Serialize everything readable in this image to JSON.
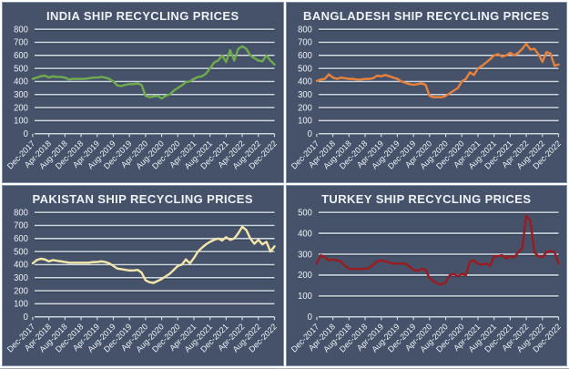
{
  "theme": {
    "page_bg": "#ffffff",
    "panel_bg": "#455269",
    "panel_border": "#8091a8",
    "grid_light": "#ccd4de",
    "grid_shadow": "#354155",
    "text": "#eef2f7"
  },
  "chart_data": [
    {
      "type": "line",
      "title": "INDIA SHIP RECYCLING PRICES",
      "line_color": "#6faa4f",
      "ylim": [
        0,
        800
      ],
      "y_ticks": [
        0,
        100,
        200,
        300,
        400,
        500,
        600,
        700,
        800
      ],
      "x_monthly_start": "Dec-2017",
      "x_monthly_end": "Dec-2022",
      "x_tick_labels": [
        "Dec-2017",
        "Apr-2018",
        "Aug-2018",
        "Dec-2018",
        "Apr-2019",
        "Aug-2019",
        "Dec-2019",
        "Apr-2020",
        "Aug-2020",
        "Dec-2020",
        "Apr-2021",
        "Aug-2021",
        "Dec-2021",
        "Apr-2022",
        "Aug-2022",
        "Dec-2022"
      ],
      "values": [
        420,
        430,
        440,
        445,
        430,
        440,
        435,
        435,
        430,
        415,
        420,
        420,
        420,
        420,
        425,
        430,
        430,
        435,
        430,
        420,
        400,
        370,
        365,
        375,
        380,
        380,
        385,
        375,
        290,
        280,
        285,
        290,
        270,
        290,
        300,
        330,
        350,
        370,
        395,
        400,
        420,
        435,
        440,
        460,
        500,
        545,
        560,
        600,
        550,
        640,
        560,
        650,
        670,
        650,
        600,
        580,
        560,
        555,
        600,
        560,
        530
      ]
    },
    {
      "type": "line",
      "title": "BANGLADESH SHIP RECYCLING PRICES",
      "line_color": "#e8813b",
      "ylim": [
        0,
        800
      ],
      "y_ticks": [
        0,
        100,
        200,
        300,
        400,
        500,
        600,
        700,
        800
      ],
      "x_monthly_start": "Dec-2017",
      "x_monthly_end": "Dec-2022",
      "x_tick_labels": [
        "Dec-2017",
        "Apr-2018",
        "Aug-2018",
        "Dec-2018",
        "Apr-2019",
        "Aug-2019",
        "Dec-2019",
        "Apr-2020",
        "Aug-2020",
        "Dec-2020",
        "Apr-2021",
        "Aug-2021",
        "Dec-2021",
        "Apr-2022",
        "Aug-2022",
        "Dec-2022"
      ],
      "values": [
        405,
        415,
        420,
        455,
        430,
        420,
        430,
        425,
        420,
        420,
        415,
        415,
        420,
        420,
        425,
        445,
        440,
        450,
        440,
        430,
        420,
        400,
        390,
        380,
        375,
        380,
        385,
        375,
        290,
        280,
        280,
        280,
        290,
        310,
        330,
        350,
        400,
        420,
        470,
        450,
        500,
        520,
        545,
        570,
        600,
        610,
        590,
        600,
        620,
        600,
        620,
        650,
        690,
        645,
        650,
        610,
        550,
        625,
        615,
        520,
        530
      ]
    },
    {
      "type": "line",
      "title": "PAKISTAN SHIP RECYCLING PRICES",
      "line_color": "#f3e6ab",
      "ylim": [
        0,
        800
      ],
      "y_ticks": [
        0,
        100,
        200,
        300,
        400,
        500,
        600,
        700,
        800
      ],
      "x_monthly_start": "Dec-2017",
      "x_monthly_end": "Dec-2022",
      "x_tick_labels": [
        "Dec-2017",
        "Apr-2018",
        "Aug-2018",
        "Dec-2018",
        "Apr-2019",
        "Aug-2019",
        "Dec-2019",
        "Apr-2020",
        "Aug-2020",
        "Dec-2020",
        "Apr-2021",
        "Aug-2021",
        "Dec-2021",
        "Apr-2022",
        "Aug-2022",
        "Dec-2022"
      ],
      "values": [
        410,
        435,
        445,
        440,
        425,
        435,
        430,
        425,
        420,
        415,
        415,
        415,
        415,
        415,
        415,
        420,
        420,
        425,
        420,
        410,
        390,
        370,
        365,
        360,
        355,
        355,
        360,
        340,
        280,
        265,
        260,
        275,
        290,
        310,
        330,
        360,
        390,
        400,
        440,
        410,
        450,
        500,
        530,
        555,
        575,
        590,
        600,
        585,
        610,
        590,
        600,
        640,
        690,
        665,
        600,
        560,
        590,
        555,
        575,
        500,
        540
      ]
    },
    {
      "type": "line",
      "title": "TURKEY SHIP RECYCLING PRICES",
      "line_color": "#9c1b20",
      "ylim": [
        0,
        500
      ],
      "y_ticks": [
        0,
        100,
        200,
        300,
        400,
        500
      ],
      "x_monthly_start": "Dec-2017",
      "x_monthly_end": "Dec-2022",
      "x_tick_labels": [
        "Dec-2017",
        "Apr-2018",
        "Aug-2018",
        "Dec-2018",
        "Apr-2019",
        "Aug-2019",
        "Dec-2019",
        "Apr-2020",
        "Aug-2020",
        "Dec-2020",
        "Apr-2021",
        "Aug-2021",
        "Dec-2021",
        "Apr-2022",
        "Aug-2022",
        "Dec-2022"
      ],
      "values": [
        255,
        295,
        285,
        270,
        275,
        270,
        265,
        245,
        230,
        230,
        230,
        230,
        230,
        235,
        250,
        265,
        270,
        265,
        260,
        255,
        255,
        255,
        255,
        240,
        225,
        220,
        230,
        225,
        185,
        170,
        160,
        155,
        165,
        200,
        205,
        195,
        205,
        200,
        265,
        270,
        255,
        250,
        255,
        245,
        290,
        290,
        295,
        280,
        290,
        285,
        310,
        330,
        485,
        460,
        310,
        290,
        285,
        310,
        315,
        310,
        255
      ]
    }
  ]
}
